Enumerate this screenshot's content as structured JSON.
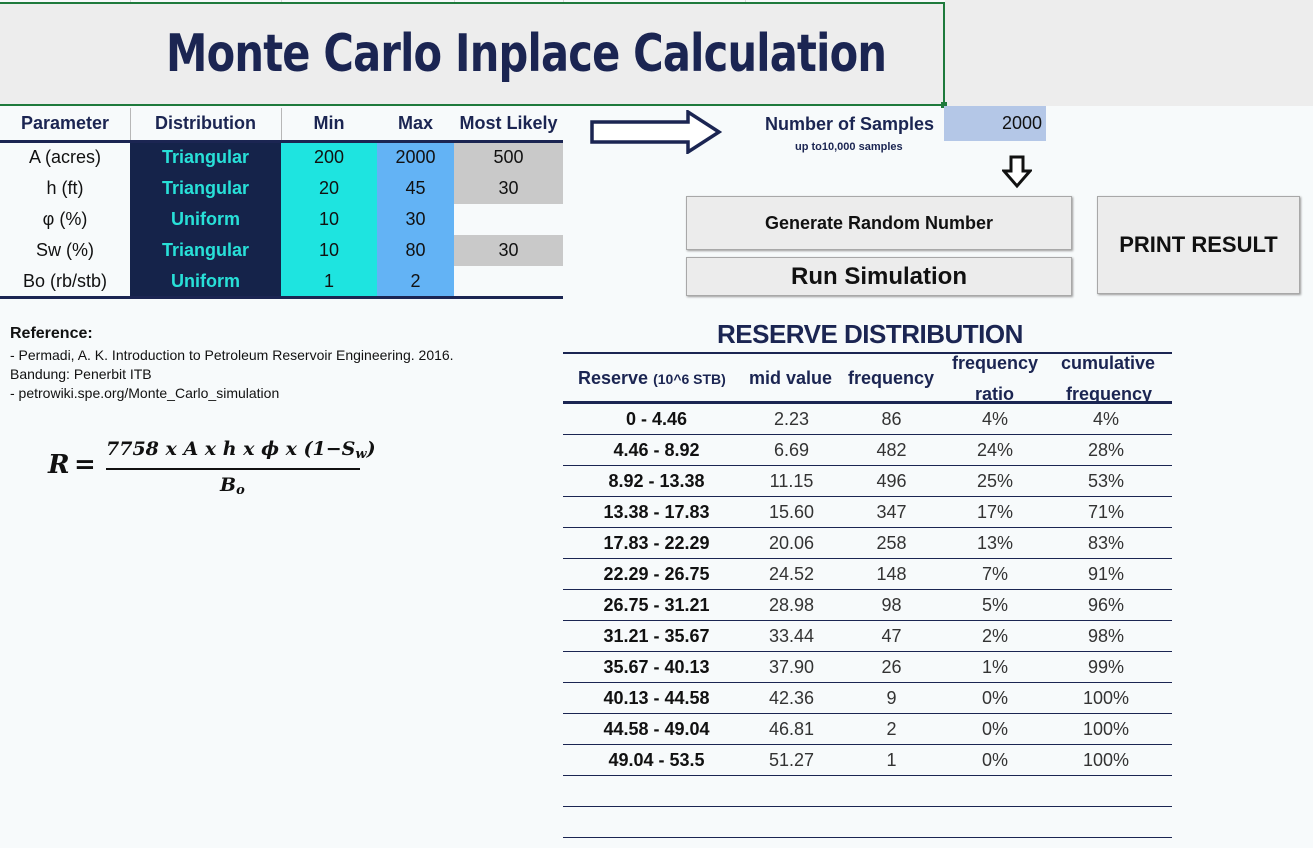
{
  "title": "Monte Carlo Inplace Calculation",
  "parameters": {
    "headers": [
      "Parameter",
      "Distribution",
      "Min",
      "Max",
      "Most Likely"
    ],
    "rows": [
      {
        "name": "A (acres)",
        "distribution": "Triangular",
        "min": "200",
        "max": "2000",
        "most_likely": "500"
      },
      {
        "name": "h (ft)",
        "distribution": "Triangular",
        "min": "20",
        "max": "45",
        "most_likely": "30"
      },
      {
        "name": "φ (%)",
        "distribution": "Uniform",
        "min": "10",
        "max": "30",
        "most_likely": ""
      },
      {
        "name": "Sw (%)",
        "distribution": "Triangular",
        "min": "10",
        "max": "80",
        "most_likely": "30"
      },
      {
        "name": "Bo (rb/stb)",
        "distribution": "Uniform",
        "min": "1",
        "max": "2",
        "most_likely": ""
      }
    ]
  },
  "samples": {
    "label": "Number of Samples",
    "sublabel": "up to10,000 samples",
    "value": "2000"
  },
  "buttons": {
    "generate": "Generate Random Number",
    "run": "Run Simulation",
    "print": "PRINT RESULT"
  },
  "reference": {
    "title": "Reference:",
    "lines": [
      "- Permadi, A. K. Introduction to Petroleum Reservoir Engineering. 2016.",
      "Bandung: Penerbit ITB",
      "- petrowiki.spe.org/Monte_Carlo_simulation"
    ]
  },
  "formula": {
    "lhs": "R",
    "eq": "=",
    "numerator_main": "7758 x A x h x ϕ x (1−S",
    "numerator_sub": "w",
    "numerator_close": ")",
    "denominator_main": "B",
    "denominator_sub": "o"
  },
  "reserve": {
    "title": "RESERVE DISTRIBUTION",
    "headers": {
      "reserve": "Reserve",
      "reserve_unit": "(10^6 STB)",
      "mid": "mid value",
      "freq": "frequency",
      "ratio_1": "frequency",
      "ratio_2": "ratio",
      "cum_1": "cumulative",
      "cum_2": "frequency"
    },
    "rows": [
      {
        "range": "0 - 4.46",
        "mid": "2.23",
        "freq": "86",
        "ratio": "4%",
        "cum": "4%"
      },
      {
        "range": "4.46 - 8.92",
        "mid": "6.69",
        "freq": "482",
        "ratio": "24%",
        "cum": "28%"
      },
      {
        "range": "8.92 - 13.38",
        "mid": "11.15",
        "freq": "496",
        "ratio": "25%",
        "cum": "53%"
      },
      {
        "range": "13.38 - 17.83",
        "mid": "15.60",
        "freq": "347",
        "ratio": "17%",
        "cum": "71%"
      },
      {
        "range": "17.83 - 22.29",
        "mid": "20.06",
        "freq": "258",
        "ratio": "13%",
        "cum": "83%"
      },
      {
        "range": "22.29 - 26.75",
        "mid": "24.52",
        "freq": "148",
        "ratio": "7%",
        "cum": "91%"
      },
      {
        "range": "26.75 - 31.21",
        "mid": "28.98",
        "freq": "98",
        "ratio": "5%",
        "cum": "96%"
      },
      {
        "range": "31.21 - 35.67",
        "mid": "33.44",
        "freq": "47",
        "ratio": "2%",
        "cum": "98%"
      },
      {
        "range": "35.67 - 40.13",
        "mid": "37.90",
        "freq": "26",
        "ratio": "1%",
        "cum": "99%"
      },
      {
        "range": "40.13 - 44.58",
        "mid": "42.36",
        "freq": "9",
        "ratio": "0%",
        "cum": "100%"
      },
      {
        "range": "44.58 - 49.04",
        "mid": "46.81",
        "freq": "2",
        "ratio": "0%",
        "cum": "100%"
      },
      {
        "range": "49.04 - 53.5",
        "mid": "51.27",
        "freq": "1",
        "ratio": "0%",
        "cum": "100%"
      },
      {
        "range": "",
        "mid": "",
        "freq": "",
        "ratio": "",
        "cum": ""
      },
      {
        "range": "",
        "mid": "",
        "freq": "",
        "ratio": "",
        "cum": ""
      }
    ]
  },
  "colors": {
    "navy": "#1b2552",
    "distribution_bg": "#15234a",
    "distribution_text": "#28e0d8",
    "min_bg": "#1ee4e0",
    "max_bg": "#63b3f5",
    "most_likely_bg": "#c9c9c9",
    "samples_bg": "#b4c7e7",
    "title_border": "#1e7a3c"
  }
}
